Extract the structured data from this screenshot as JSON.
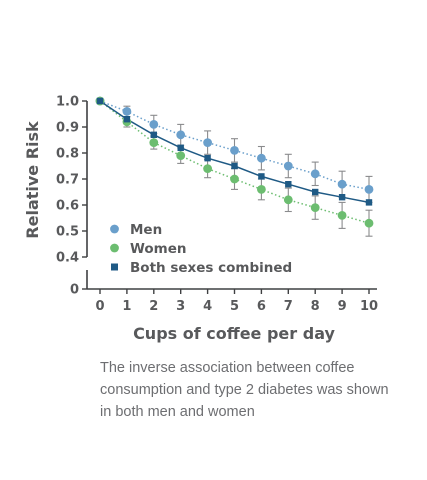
{
  "chart_data": {
    "type": "line",
    "xlabel": "Cups of coffee per day",
    "ylabel": "Relative Risk",
    "x": [
      0,
      1,
      2,
      3,
      4,
      5,
      6,
      7,
      8,
      9,
      10
    ],
    "x_ticks": [
      "0",
      "1",
      "2",
      "3",
      "4",
      "5",
      "6",
      "7",
      "8",
      "9",
      "10"
    ],
    "y_ticks": [
      "1.0",
      "0.9",
      "0.8",
      "0.7",
      "0.6",
      "0.5",
      "0.4",
      "0"
    ],
    "ylim": [
      0,
      1.0
    ],
    "axis_break": [
      0,
      0.4
    ],
    "grid": false,
    "legend_position": "bottom-left",
    "series": [
      {
        "name": "Men",
        "color": "#6a9fcb",
        "marker": "circle",
        "line": "dotted",
        "values": [
          1.0,
          0.96,
          0.91,
          0.87,
          0.84,
          0.81,
          0.78,
          0.75,
          0.72,
          0.68,
          0.66
        ],
        "error": [
          0,
          0.02,
          0.035,
          0.04,
          0.045,
          0.045,
          0.045,
          0.045,
          0.045,
          0.05,
          0.05
        ]
      },
      {
        "name": "Women",
        "color": "#6cbd70",
        "marker": "circle",
        "line": "dotted",
        "values": [
          1.0,
          0.92,
          0.84,
          0.79,
          0.74,
          0.7,
          0.66,
          0.62,
          0.59,
          0.56,
          0.53
        ],
        "error": [
          0,
          0.02,
          0.025,
          0.03,
          0.035,
          0.04,
          0.04,
          0.045,
          0.045,
          0.05,
          0.05
        ]
      },
      {
        "name": "Both sexes combined",
        "color": "#1f5a85",
        "marker": "square",
        "line": "solid",
        "values": [
          1.0,
          0.93,
          0.87,
          0.82,
          0.78,
          0.75,
          0.71,
          0.68,
          0.65,
          0.63,
          0.61
        ],
        "error": [
          0,
          0,
          0,
          0,
          0,
          0,
          0,
          0,
          0,
          0,
          0
        ]
      }
    ]
  },
  "caption": "The inverse association between coffee consumption and type 2 diabetes was shown in both men and women"
}
